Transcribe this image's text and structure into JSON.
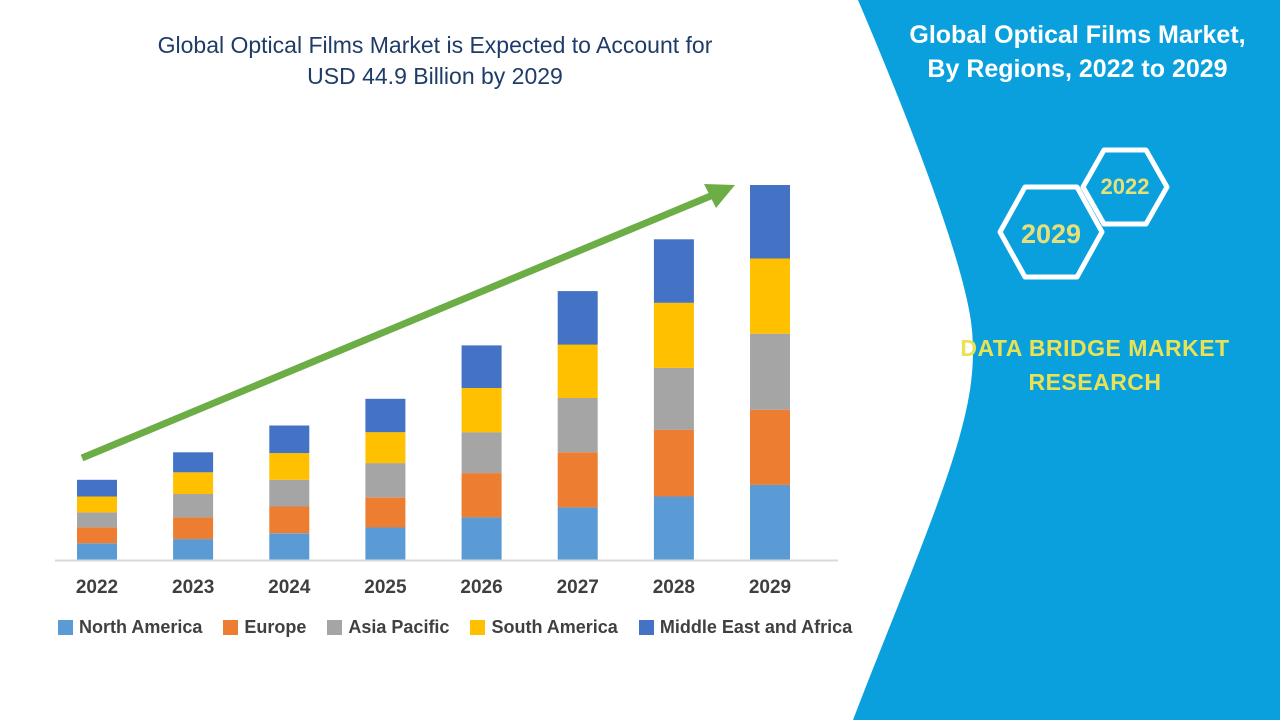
{
  "left_panel": {
    "title_line1": "Global Optical Films Market is Expected to Account for",
    "title_line2": "USD 44.9 Billion by 2029"
  },
  "chart_data": {
    "type": "bar",
    "stacked": true,
    "title": "Global Optical Films Market is Expected to Account for USD 44.9 Billion by 2029",
    "unit": "USD Billion",
    "categories": [
      "2022",
      "2023",
      "2024",
      "2025",
      "2026",
      "2027",
      "2028",
      "2029"
    ],
    "series": [
      {
        "name": "North America",
        "color": "#5B9BD5",
        "values": [
          2.0,
          2.5,
          3.2,
          3.9,
          5.1,
          6.3,
          7.6,
          9.0
        ]
      },
      {
        "name": "Europe",
        "color": "#ED7D31",
        "values": [
          1.9,
          2.6,
          3.2,
          3.6,
          5.3,
          6.6,
          8.0,
          9.0
        ]
      },
      {
        "name": "Asia Pacific",
        "color": "#A5A5A5",
        "values": [
          1.8,
          2.8,
          3.2,
          4.1,
          4.9,
          6.5,
          7.4,
          9.1
        ]
      },
      {
        "name": "South America",
        "color": "#FFC000",
        "values": [
          1.9,
          2.6,
          3.2,
          3.7,
          5.3,
          6.4,
          7.8,
          9.0
        ]
      },
      {
        "name": "Middle East and Africa",
        "color": "#4472C4",
        "values": [
          2.0,
          2.4,
          3.3,
          4.0,
          5.1,
          6.4,
          7.6,
          8.8
        ]
      }
    ],
    "totals": [
      9.6,
      12.9,
      16.1,
      19.3,
      25.7,
      32.2,
      38.4,
      44.9
    ],
    "ylim": [
      0,
      48
    ],
    "xlabel": "",
    "ylabel": "",
    "grid": false,
    "y_axis_visible": false,
    "legend_position": "bottom",
    "annotations": {
      "trend_arrow": "upward arrow from first bar to last bar"
    }
  },
  "right_panel": {
    "title_line1": "Global Optical Films Market,",
    "title_line2": "By Regions, 2022 to 2029",
    "hexagons": [
      {
        "label": "2029"
      },
      {
        "label": "2022"
      }
    ],
    "brand_line1": "DATA BRIDGE MARKET",
    "brand_line2": "RESEARCH"
  },
  "colors": {
    "chart_title_text": "#1F3C68",
    "axis_labels_text": "#3F3F3F",
    "legend_text": "#404040",
    "axis_line": "#D9D9D9",
    "trend_arrow": "#6CAE45",
    "panel_background": "#0AA0DE",
    "panel_title_text": "#FFFFFF",
    "hexagon_outline": "#FFFFFF",
    "hexagon_year_text": "#E6E07A",
    "brand_text": "#E9E254"
  }
}
